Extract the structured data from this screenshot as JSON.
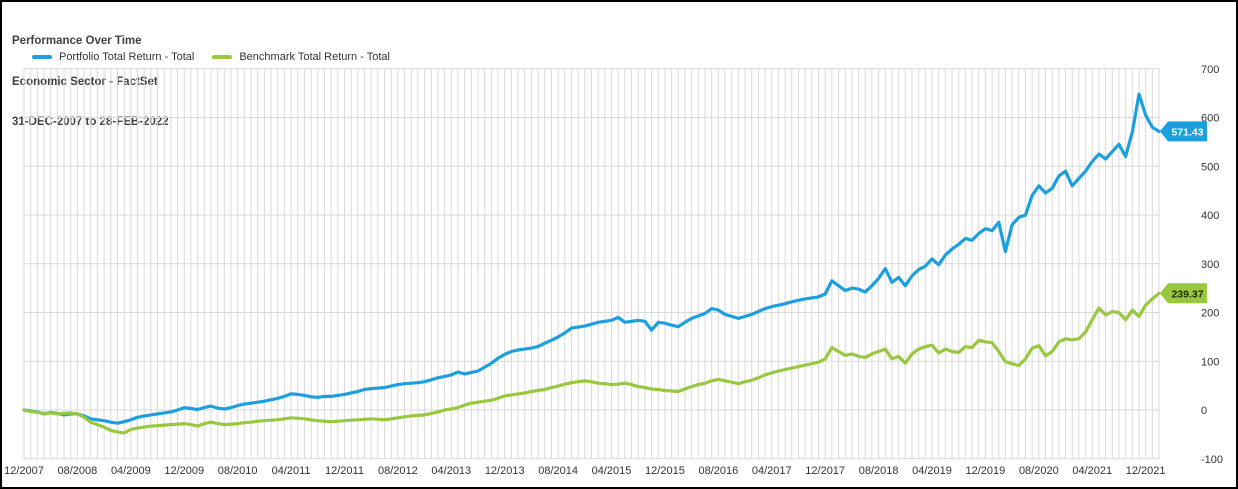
{
  "header": {
    "title_lines": [
      "Performance Over Time",
      "Economic Sector - FactSet",
      "31-DEC-2007 to 28-FEB-2022"
    ]
  },
  "legend": {
    "items": [
      {
        "label": "Portfolio Total Return - Total",
        "color": "#1b9fdf"
      },
      {
        "label": "Benchmark Total Return - Total",
        "color": "#98c83d"
      }
    ]
  },
  "y_axis": {
    "side": "right",
    "ticks": [
      700,
      600,
      500,
      400,
      300,
      200,
      100,
      0,
      -100
    ]
  },
  "chart_data": {
    "type": "line",
    "title": "Performance Over Time",
    "subtitle": "Economic Sector - FactSet",
    "date_range": "31-DEC-2007 to 28-FEB-2022",
    "x_start": "12/2007",
    "x_end": "02/2022",
    "x_frequency": "monthly",
    "x_month_count": 171,
    "x_tick_month_indices": [
      0,
      8,
      16,
      24,
      32,
      40,
      48,
      56,
      64,
      72,
      80,
      88,
      96,
      104,
      112,
      120,
      128,
      136,
      144,
      152,
      160,
      168
    ],
    "x_tick_labels": [
      "12/2007",
      "08/2008",
      "04/2009",
      "12/2009",
      "08/2010",
      "04/2011",
      "12/2011",
      "08/2012",
      "04/2013",
      "12/2013",
      "08/2014",
      "04/2015",
      "12/2015",
      "08/2016",
      "04/2017",
      "12/2017",
      "08/2018",
      "04/2019",
      "12/2019",
      "08/2020",
      "04/2021",
      "12/2021"
    ],
    "y_ticks": [
      700,
      600,
      500,
      400,
      300,
      200,
      100,
      0,
      -100
    ],
    "ylim": [
      -100,
      700
    ],
    "grid": "both",
    "grid_color": "#d9d9d9",
    "legend_position": "top-left",
    "series": [
      {
        "name": "Portfolio Total Return - Total",
        "color": "#1b9fdf",
        "end_label": "571.43",
        "end_label_text_color": "#ffffff",
        "values": [
          0,
          -2,
          -4,
          -8,
          -5,
          -7,
          -10,
          -8,
          -8,
          -12,
          -18,
          -20,
          -22,
          -25,
          -27,
          -24,
          -20,
          -15,
          -12,
          -10,
          -8,
          -6,
          -4,
          0,
          5,
          3,
          1,
          5,
          8,
          4,
          2,
          5,
          9,
          12,
          14,
          16,
          18,
          21,
          24,
          28,
          33,
          32,
          30,
          27,
          26,
          28,
          28,
          30,
          32,
          35,
          38,
          42,
          44,
          45,
          46,
          49,
          52,
          54,
          55,
          56,
          58,
          62,
          66,
          69,
          72,
          78,
          74,
          77,
          80,
          88,
          96,
          106,
          114,
          120,
          123,
          125,
          127,
          130,
          137,
          143,
          150,
          158,
          168,
          170,
          172,
          176,
          180,
          182,
          184,
          190,
          180,
          182,
          184,
          182,
          164,
          180,
          178,
          174,
          171,
          180,
          188,
          193,
          198,
          208,
          205,
          196,
          192,
          188,
          192,
          196,
          202,
          208,
          212,
          215,
          218,
          222,
          225,
          228,
          230,
          232,
          238,
          265,
          255,
          245,
          250,
          248,
          242,
          255,
          270,
          290,
          262,
          272,
          255,
          275,
          288,
          295,
          310,
          298,
          318,
          330,
          340,
          352,
          348,
          362,
          372,
          368,
          385,
          325,
          380,
          395,
          400,
          440,
          460,
          445,
          455,
          480,
          490,
          460,
          475,
          490,
          510,
          525,
          515,
          530,
          545,
          520,
          570,
          648,
          605,
          580,
          571.43
        ]
      },
      {
        "name": "Benchmark Total Return - Total",
        "color": "#98c83d",
        "end_label": "239.37",
        "end_label_text_color": "#1f2a00",
        "values": [
          0,
          -3,
          -5,
          -7,
          -6,
          -8,
          -7,
          -6,
          -8,
          -15,
          -25,
          -30,
          -35,
          -42,
          -45,
          -47,
          -40,
          -37,
          -35,
          -33,
          -32,
          -31,
          -30,
          -29,
          -28,
          -30,
          -33,
          -28,
          -25,
          -28,
          -30,
          -29,
          -28,
          -26,
          -25,
          -23,
          -22,
          -21,
          -20,
          -18,
          -16,
          -17,
          -18,
          -20,
          -22,
          -23,
          -24,
          -23,
          -22,
          -21,
          -20,
          -19,
          -18,
          -19,
          -20,
          -18,
          -16,
          -14,
          -12,
          -11,
          -10,
          -7,
          -4,
          0,
          2,
          5,
          10,
          14,
          16,
          18,
          20,
          24,
          29,
          31,
          33,
          35,
          38,
          40,
          42,
          46,
          49,
          53,
          56,
          58,
          60,
          58,
          55,
          54,
          52,
          53,
          55,
          52,
          48,
          46,
          43,
          42,
          40,
          39,
          38,
          43,
          48,
          52,
          55,
          60,
          63,
          60,
          57,
          54,
          58,
          61,
          66,
          72,
          76,
          80,
          83,
          86,
          89,
          92,
          95,
          98,
          105,
          128,
          120,
          112,
          115,
          110,
          108,
          115,
          120,
          125,
          105,
          110,
          96,
          115,
          125,
          130,
          133,
          117,
          125,
          120,
          118,
          130,
          128,
          143,
          140,
          138,
          120,
          99,
          95,
          91,
          105,
          127,
          132,
          111,
          120,
          140,
          146,
          144,
          146,
          160,
          185,
          209,
          195,
          202,
          200,
          185,
          205,
          192,
          215,
          228,
          239.37
        ]
      }
    ]
  }
}
